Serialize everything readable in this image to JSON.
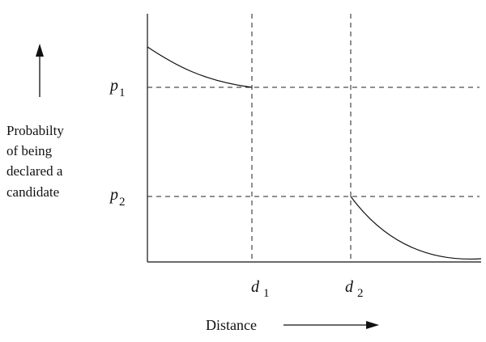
{
  "chart_data": {
    "type": "diagram",
    "y_label_lines": [
      "Probabilty",
      "of being",
      "declared a",
      "candidate"
    ],
    "x_label": "Distance",
    "y_ticks": [
      {
        "name": "p",
        "sub": "1"
      },
      {
        "name": "p",
        "sub": "2"
      }
    ],
    "x_ticks": [
      {
        "name": "d",
        "sub": "1"
      },
      {
        "name": "d",
        "sub": "2"
      }
    ],
    "guides": "dashed",
    "curve_description": "probability decreases from the top-left to p1 at d1, is zero between d1 and d2, then decays from p2 at d2 toward zero"
  }
}
